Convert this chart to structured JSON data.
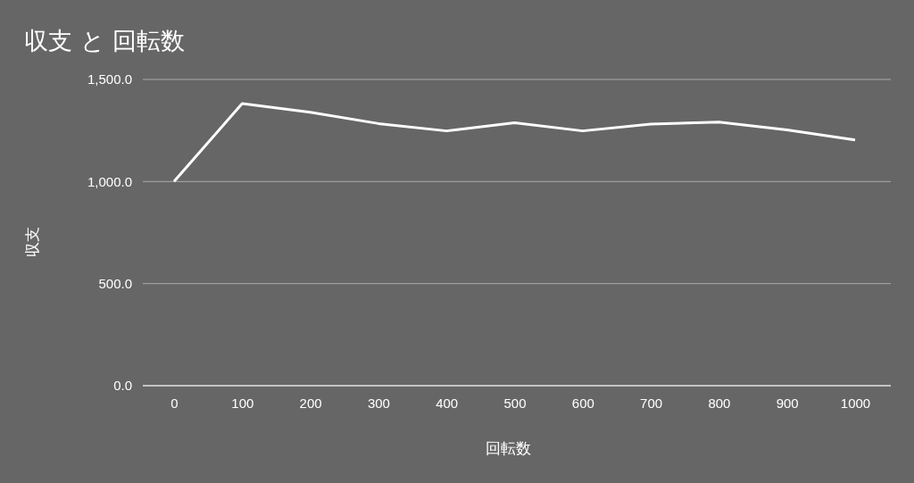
{
  "chart_data": {
    "type": "line",
    "title": "収支 と 回転数",
    "xlabel": "回転数",
    "ylabel": "収支",
    "categories": [
      "0",
      "100",
      "200",
      "300",
      "400",
      "500",
      "600",
      "700",
      "800",
      "900",
      "1000"
    ],
    "series": [
      {
        "color": "#ffffff",
        "values": [
          1000,
          1382,
          1339,
          1284,
          1248,
          1288,
          1248,
          1281,
          1291,
          1253,
          1204
        ]
      }
    ],
    "ylim": [
      0,
      1500
    ],
    "yticks": [
      {
        "value": 0,
        "label": "0.0"
      },
      {
        "value": 500,
        "label": "500.0"
      },
      {
        "value": 1000,
        "label": "1,000.0"
      },
      {
        "value": 1500,
        "label": "1,500.0"
      }
    ],
    "grid": "y",
    "marker": "none",
    "line_style": "solid"
  }
}
